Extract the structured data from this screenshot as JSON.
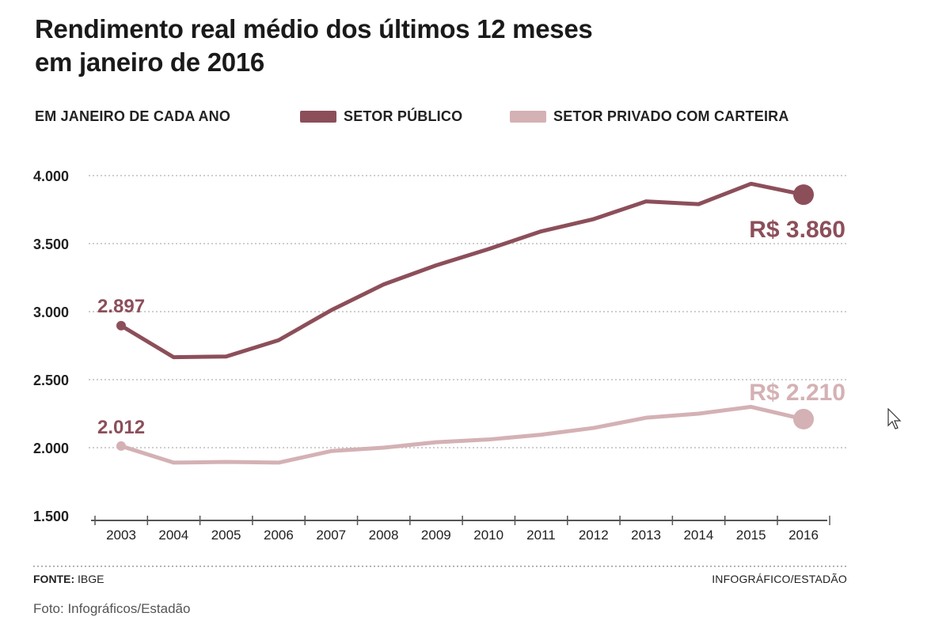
{
  "title_line1": "Rendimento real médio dos últimos 12 meses",
  "title_line2": "em janeiro de 2016",
  "legend": {
    "note": "EM JANEIRO DE CADA ANO",
    "publico": "SETOR PÚBLICO",
    "privado": "SETOR PRIVADO COM CARTEIRA"
  },
  "colors": {
    "publico": "#8c4f5a",
    "privado": "#d4b1b4",
    "grid": "#bdbdbd",
    "axis": "#555555"
  },
  "chart_data": {
    "type": "line",
    "categories": [
      "2003",
      "2004",
      "2005",
      "2006",
      "2007",
      "2008",
      "2009",
      "2010",
      "2011",
      "2012",
      "2013",
      "2014",
      "2015",
      "2016"
    ],
    "series": [
      {
        "name": "SETOR PÚBLICO",
        "values": [
          2897,
          2665,
          2670,
          2790,
          3010,
          3200,
          3340,
          3460,
          3590,
          3680,
          3810,
          3790,
          3940,
          3860
        ]
      },
      {
        "name": "SETOR PRIVADO COM CARTEIRA",
        "values": [
          2012,
          1890,
          1895,
          1890,
          1975,
          2000,
          2040,
          2060,
          2095,
          2145,
          2220,
          2250,
          2300,
          2210
        ]
      }
    ],
    "ylim": [
      1500,
      4000
    ],
    "yticks": [
      1500,
      2000,
      2500,
      3000,
      3500,
      4000
    ],
    "ytick_labels": [
      "1.500",
      "2.000",
      "2.500",
      "3.000",
      "3.500",
      "4.000"
    ],
    "annotations": {
      "publico_start": "2.897",
      "publico_end": "R$ 3.860",
      "privado_start": "2.012",
      "privado_end": "R$ 2.210"
    },
    "xlabel": "",
    "ylabel": ""
  },
  "footer": {
    "source_label": "FONTE:",
    "source_value": "IBGE",
    "credit": "INFOGRÁFICO/ESTADÃO"
  },
  "caption": "Foto: Infográficos/Estadão"
}
